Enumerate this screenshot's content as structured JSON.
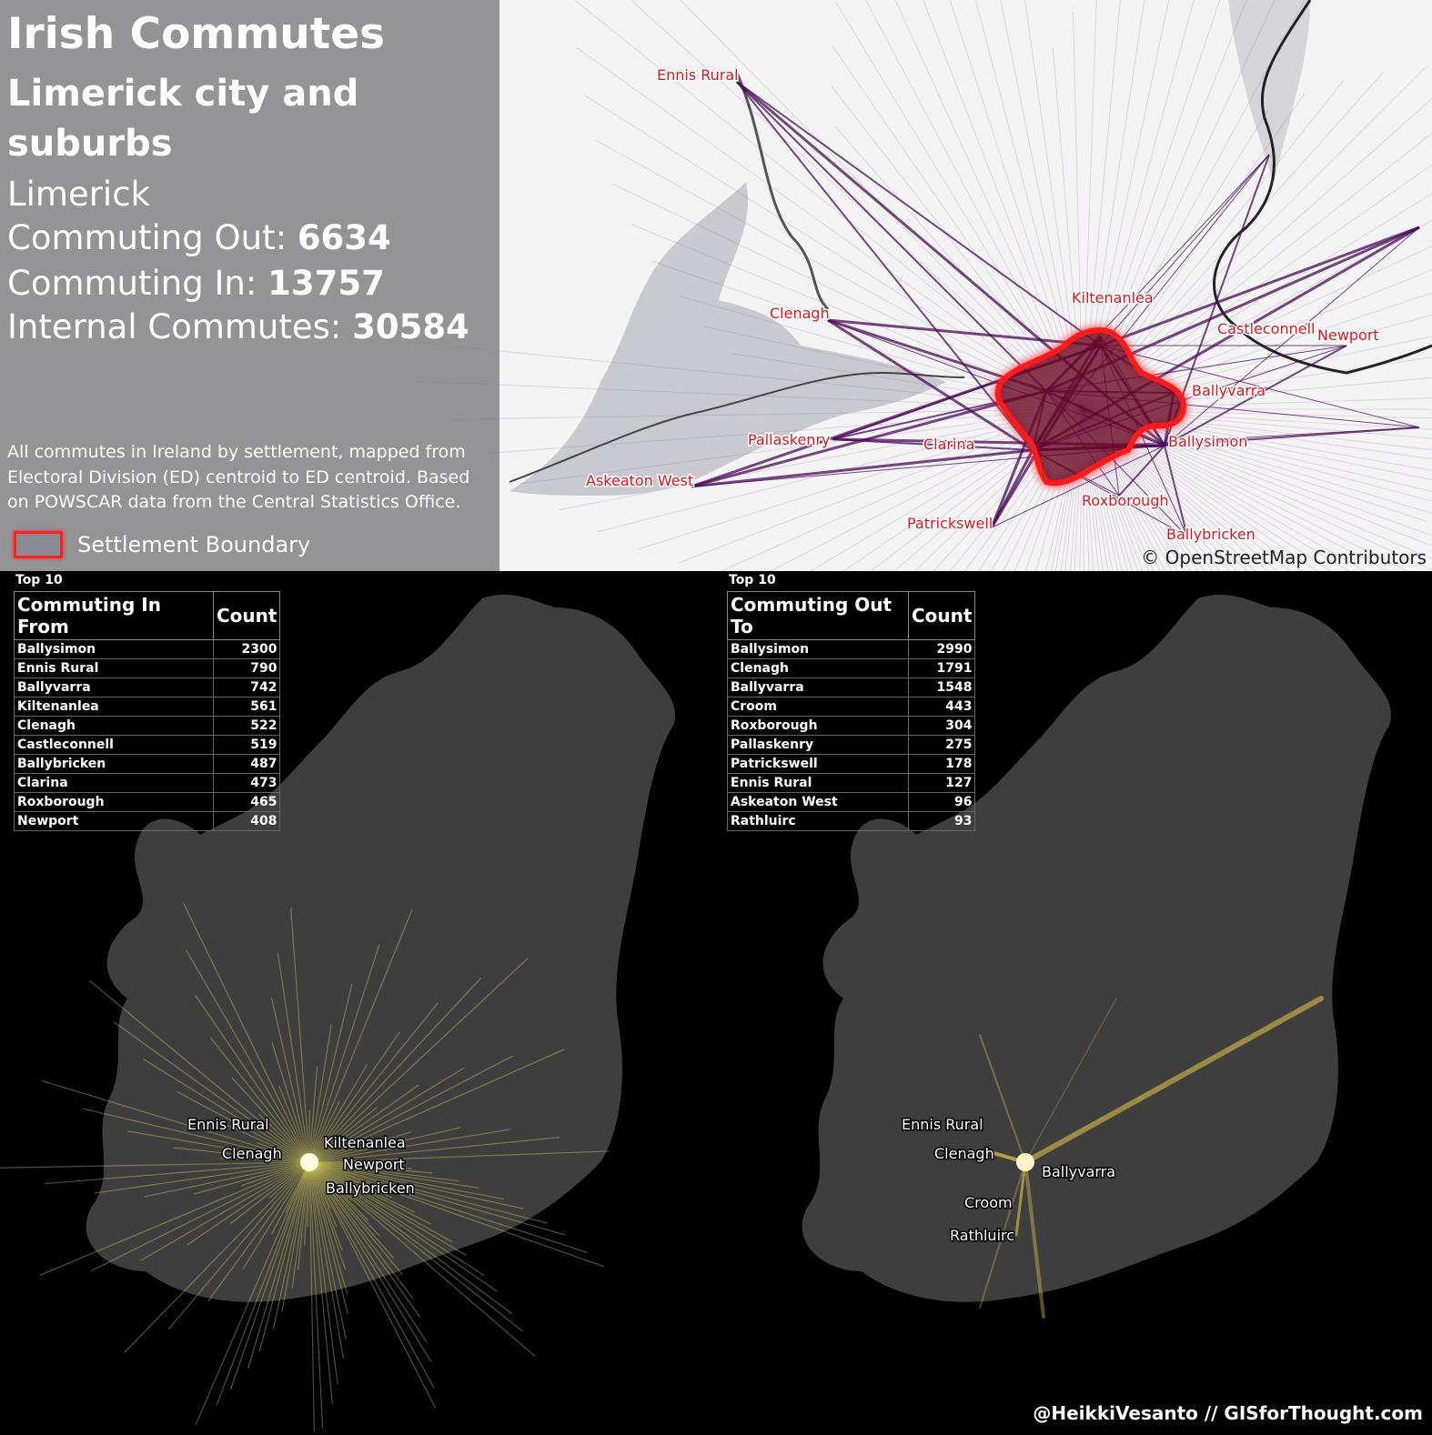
{
  "title": "Irish Commutes",
  "settlement": "Limerick city and suburbs",
  "county": "Limerick",
  "stats": {
    "out_label": "Commuting Out:",
    "out_value": "6634",
    "in_label": "Commuting In:",
    "in_value": "13757",
    "internal_label": "Internal Commutes:",
    "internal_value": "30584"
  },
  "description": "All commutes in Ireland by settlement, mapped from Electoral Division (ED) centroid to ED centroid. Based on POWSCAR data from the Central Statistics Office.",
  "legend_label": "Settlement Boundary",
  "attribution": "© OpenStreetMap Contributors",
  "top_map_labels": [
    "Ennis Rural",
    "Clenagh",
    "Kiltenanlea",
    "Castleconnell",
    "Newport",
    "Ballyvarra",
    "Ballysimon",
    "Pallaskenry",
    "Clarina",
    "Askeaton West",
    "Roxborough",
    "Patrickswell",
    "Ballybricken"
  ],
  "in_table": {
    "caption": "Top 10",
    "col1": "Commuting In From",
    "col2": "Count",
    "rows": [
      {
        "name": "Ballysimon",
        "count": "2300"
      },
      {
        "name": "Ennis Rural",
        "count": "790"
      },
      {
        "name": "Ballyvarra",
        "count": "742"
      },
      {
        "name": "Kiltenanlea",
        "count": "561"
      },
      {
        "name": "Clenagh",
        "count": "522"
      },
      {
        "name": "Castleconnell",
        "count": "519"
      },
      {
        "name": "Ballybricken",
        "count": "487"
      },
      {
        "name": "Clarina",
        "count": "473"
      },
      {
        "name": "Roxborough",
        "count": "465"
      },
      {
        "name": "Newport",
        "count": "408"
      }
    ]
  },
  "out_table": {
    "caption": "Top 10",
    "col1": "Commuting Out To",
    "col2": "Count",
    "rows": [
      {
        "name": "Ballysimon",
        "count": "2990"
      },
      {
        "name": "Clenagh",
        "count": "1791"
      },
      {
        "name": "Ballyvarra",
        "count": "1548"
      },
      {
        "name": "Croom",
        "count": "443"
      },
      {
        "name": "Roxborough",
        "count": "304"
      },
      {
        "name": "Pallaskenry",
        "count": "275"
      },
      {
        "name": "Patrickswell",
        "count": "178"
      },
      {
        "name": "Ennis Rural",
        "count": "127"
      },
      {
        "name": "Askeaton West",
        "count": "96"
      },
      {
        "name": "Rathluirc",
        "count": "93"
      }
    ]
  },
  "left_map_labels": [
    "Ennis Rural",
    "Clenagh",
    "Kiltenanlea",
    "Newport",
    "Ballybricken"
  ],
  "right_map_labels": [
    "Ennis Rural",
    "Clenagh",
    "Ballyvarra",
    "Croom",
    "Rathluirc"
  ],
  "footer": "@HeikkiVesanto // GISforThought.com",
  "colors": {
    "accent": "#e0141e",
    "commute_in": "#f2e45a",
    "commute_out_lines": "#4a0a5a"
  }
}
